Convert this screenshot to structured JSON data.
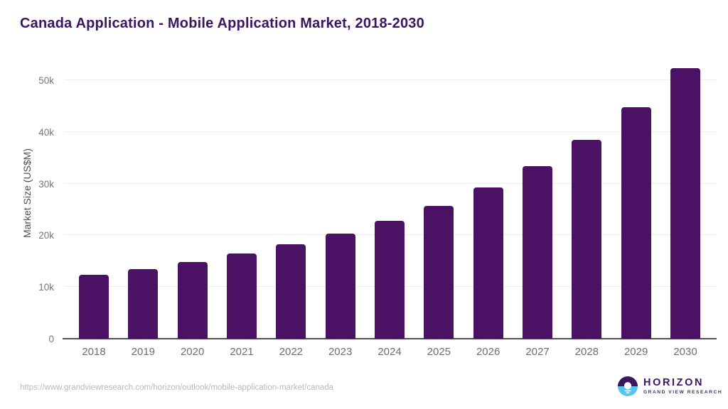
{
  "title": "Canada Application - Mobile Application Market, 2018-2030",
  "chart_data": {
    "type": "bar",
    "title": "Canada Application - Mobile Application Market, 2018-2030",
    "xlabel": "",
    "ylabel": "Market Size (US$M)",
    "categories": [
      "2018",
      "2019",
      "2020",
      "2021",
      "2022",
      "2023",
      "2024",
      "2025",
      "2026",
      "2027",
      "2028",
      "2029",
      "2030"
    ],
    "values": [
      12300,
      13400,
      14900,
      16500,
      18300,
      20300,
      22800,
      25700,
      29200,
      33400,
      38500,
      44800,
      52400
    ],
    "ylim": [
      0,
      52500
    ],
    "yticks": [
      {
        "value": 0,
        "label": "0"
      },
      {
        "value": 10000,
        "label": "10k"
      },
      {
        "value": 20000,
        "label": "20k"
      },
      {
        "value": 30000,
        "label": "30k"
      },
      {
        "value": 40000,
        "label": "40k"
      },
      {
        "value": 50000,
        "label": "50k"
      }
    ],
    "grid": true,
    "legend": false,
    "bar_color": "#4a1164",
    "gridline_color": "#ededed",
    "axis_line_color": "#4f4f4f",
    "tick_label_color": "#767676"
  },
  "footer": {
    "source_url": "https://www.grandviewresearch.com/horizon/outlook/mobile-application-market/canada",
    "logo": {
      "brand": "HORIZON",
      "sub_brand": "GRAND VIEW RESEARCH",
      "icon": "horizon-sunset-icon",
      "purple": "#3a175e",
      "blue": "#56c5f0"
    }
  },
  "theme": {
    "accent_purple": "#4a1164",
    "title_purple": "#3c1562",
    "background": "#ffffff"
  }
}
